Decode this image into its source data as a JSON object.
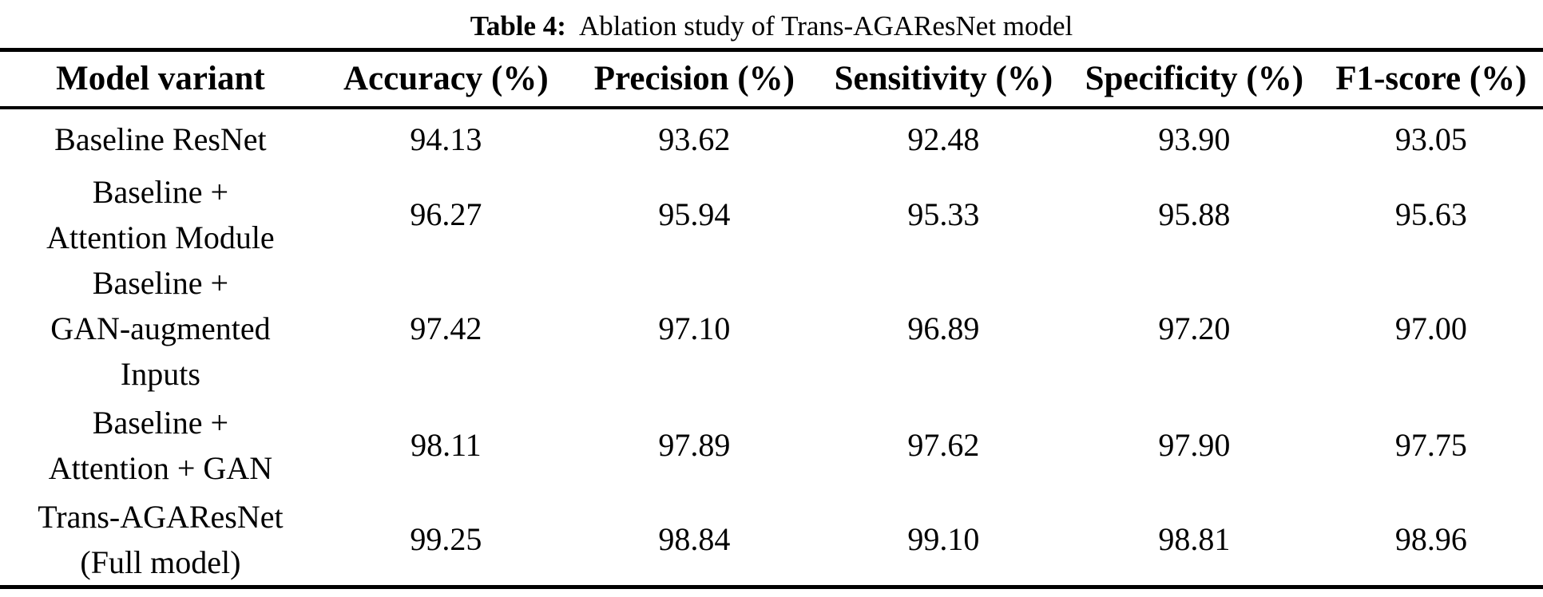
{
  "caption": {
    "label": "Table 4:",
    "text": "Ablation study of Trans-AGAResNet model"
  },
  "table": {
    "headers": [
      "Model variant",
      "Accuracy (%)",
      "Precision (%)",
      "Sensitivity (%)",
      "Specificity (%)",
      "F1-score (%)"
    ],
    "rows": [
      [
        "Baseline ResNet",
        "94.13",
        "93.62",
        "92.48",
        "93.90",
        "93.05"
      ],
      [
        "Baseline +\nAttention Module",
        "96.27",
        "95.94",
        "95.33",
        "95.88",
        "95.63"
      ],
      [
        "Baseline +\nGAN-augmented\nInputs",
        "97.42",
        "97.10",
        "96.89",
        "97.20",
        "97.00"
      ],
      [
        "Baseline +\nAttention + GAN",
        "98.11",
        "97.89",
        "97.62",
        "97.90",
        "97.75"
      ],
      [
        "Trans-AGAResNet\n(Full model)",
        "99.25",
        "98.84",
        "99.10",
        "98.81",
        "98.96"
      ]
    ]
  },
  "colors": {
    "text": "#000000",
    "background": "#ffffff",
    "rule": "#000000"
  }
}
